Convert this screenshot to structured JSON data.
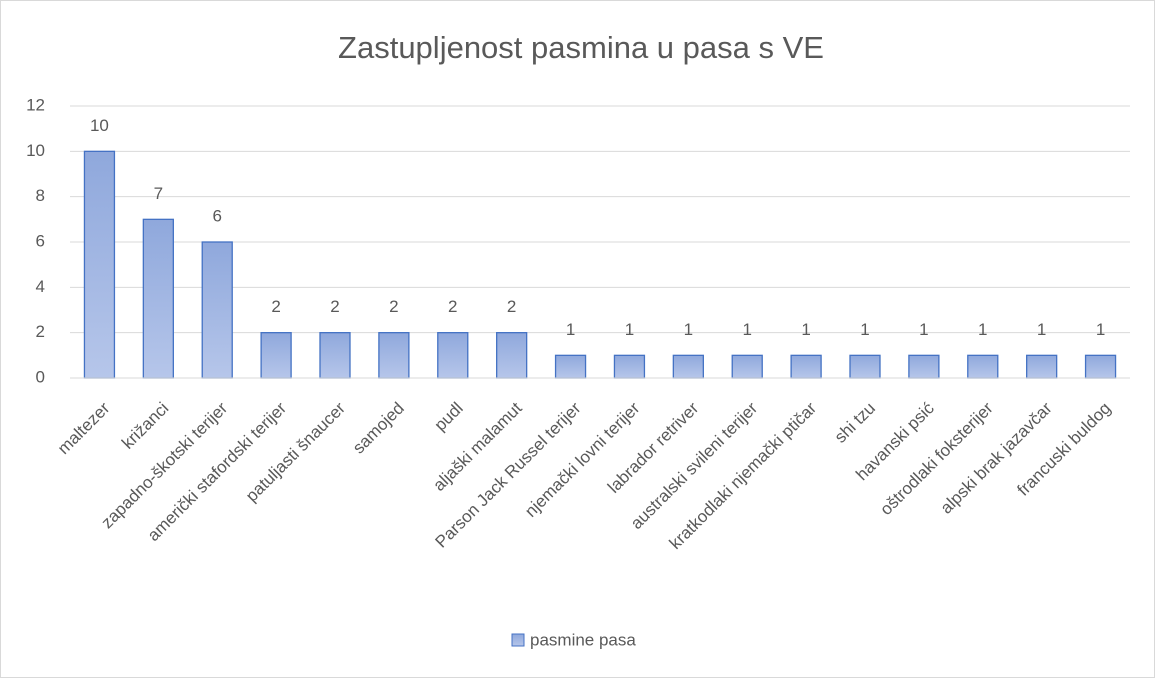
{
  "chart_data": {
    "type": "bar",
    "title": "Zastupljenost pasmina u pasa s VE",
    "categories": [
      "maltezer",
      "križanci",
      "zapadno-škotski terijer",
      "američki stafordski terijer",
      "patuljasti šnaucer",
      "samojed",
      "pudl",
      "aljaški malamut",
      "Parson Jack Russel terijer",
      "njemački lovni terijer",
      "labrador retriver",
      "australski svileni terijer",
      "kratkodlaki njemački ptičar",
      "shi tzu",
      "havanski psić",
      "oštrodlaki foksterijer",
      "alpski brak jazavčar",
      "francuski buldog"
    ],
    "series": [
      {
        "name": "pasmine pasa",
        "color": "#4472c4",
        "values": [
          10,
          7,
          6,
          2,
          2,
          2,
          2,
          2,
          1,
          1,
          1,
          1,
          1,
          1,
          1,
          1,
          1,
          1
        ]
      }
    ],
    "ylim": [
      0,
      12
    ],
    "yticks": [
      0,
      2,
      4,
      6,
      8,
      10,
      12
    ],
    "grid": true,
    "data_labels": true,
    "legend": "bottom"
  }
}
